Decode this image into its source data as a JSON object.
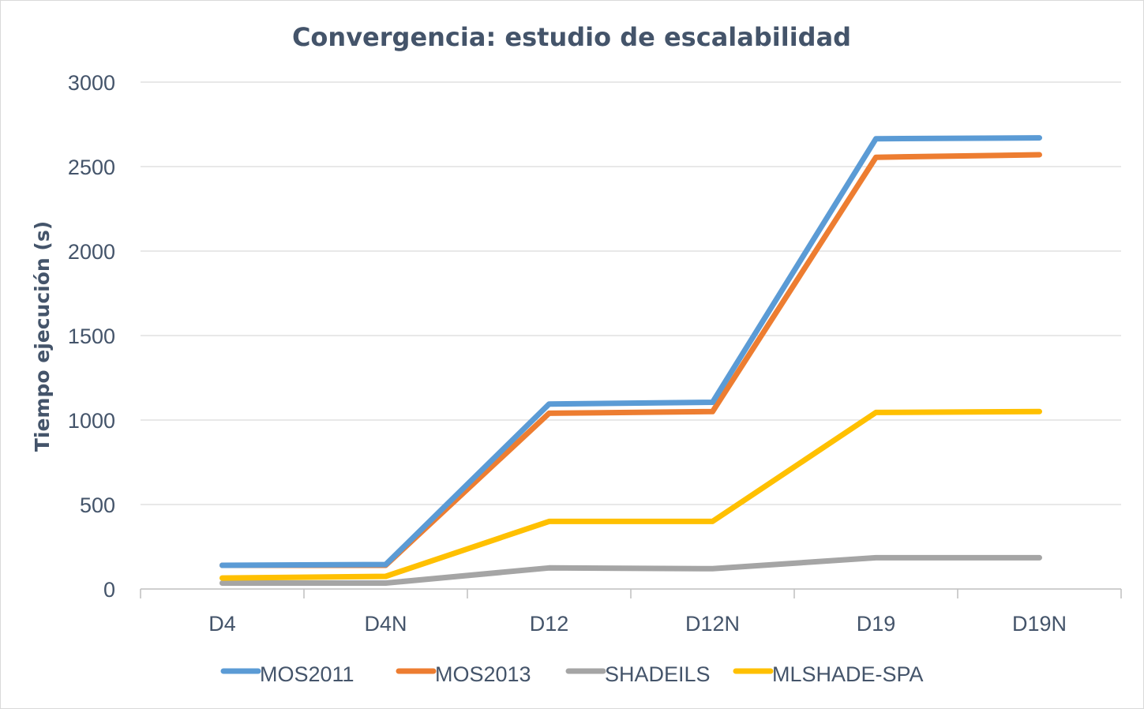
{
  "chart_data": {
    "type": "line",
    "title": "Convergencia: estudio de escalabilidad",
    "xlabel": "",
    "ylabel": "Tiempo ejecución (s)",
    "ylim": [
      0,
      3000
    ],
    "yticks": [
      "0",
      "500",
      "1000",
      "1500",
      "2000",
      "2500",
      "3000"
    ],
    "categories": [
      "D4",
      "D4N",
      "D12",
      "D12N",
      "D19",
      "D19N"
    ],
    "grid": true,
    "legend_position": "bottom",
    "series": [
      {
        "name": "MOS2011",
        "color": "#5b9bd5",
        "values": [
          140,
          145,
          1095,
          1105,
          2665,
          2670
        ]
      },
      {
        "name": "MOS2013",
        "color": "#ed7d31",
        "values": [
          140,
          140,
          1040,
          1050,
          2555,
          2570
        ]
      },
      {
        "name": "SHADEILS",
        "color": "#a5a5a5",
        "values": [
          35,
          35,
          125,
          120,
          185,
          185
        ]
      },
      {
        "name": "MLSHADE-SPA",
        "color": "#ffc000",
        "values": [
          65,
          75,
          400,
          400,
          1045,
          1050
        ]
      }
    ]
  }
}
